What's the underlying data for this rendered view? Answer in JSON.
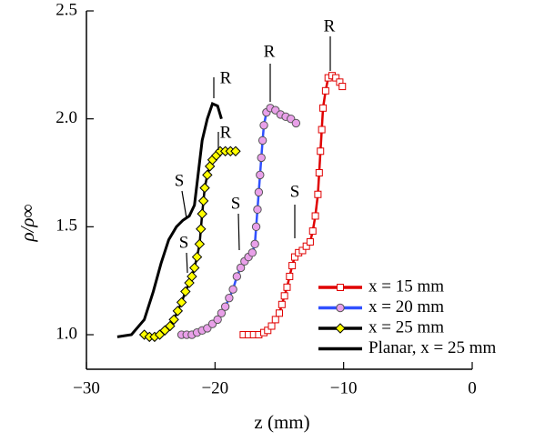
{
  "chart_data": {
    "type": "line",
    "xlabel": "z (mm)",
    "ylabel": "ρ/ρ∞",
    "xlim": [
      -30,
      0
    ],
    "ylim": [
      0.84,
      2.5
    ],
    "xticks": [
      {
        "value": -30,
        "label": "−30"
      },
      {
        "value": -20,
        "label": "−20"
      },
      {
        "value": -10,
        "label": "−10"
      },
      0
    ],
    "yticks": [
      {
        "value": 1,
        "label": "1.0"
      },
      1.5,
      {
        "value": 2,
        "label": "2.0"
      },
      2.5
    ],
    "legend": "lower right",
    "annotations": [
      "S",
      "S",
      "R",
      "R",
      "S",
      "R",
      "S",
      "R"
    ],
    "series": [
      {
        "name": "x = 15 mm",
        "color": "#e00000",
        "marker": "square",
        "marker_fill": "#ffffff",
        "marker_stroke": "#e00000",
        "x": [
          -17.8,
          -17.4,
          -17.0,
          -16.6,
          -16.2,
          -15.9,
          -15.6,
          -15.3,
          -15.0,
          -14.8,
          -14.6,
          -14.4,
          -14.2,
          -14.0,
          -13.8,
          -13.5,
          -13.2,
          -12.9,
          -12.6,
          -12.4,
          -12.2,
          -12.0,
          -11.9,
          -11.8,
          -11.7,
          -11.6,
          -11.4,
          -11.2,
          -10.9,
          -10.6,
          -10.3,
          -10.1
        ],
        "values": [
          1.0,
          1.0,
          1.0,
          1.0,
          1.01,
          1.02,
          1.04,
          1.07,
          1.1,
          1.14,
          1.18,
          1.22,
          1.27,
          1.32,
          1.36,
          1.38,
          1.39,
          1.41,
          1.43,
          1.48,
          1.55,
          1.65,
          1.75,
          1.85,
          1.95,
          2.05,
          2.13,
          2.19,
          2.2,
          2.19,
          2.17,
          2.15
        ]
      },
      {
        "name": "x = 20 mm",
        "color": "#3050ff",
        "marker": "circle",
        "marker_fill": "#e9a0e9",
        "marker_stroke": "#555555",
        "x": [
          -22.6,
          -22.2,
          -21.8,
          -21.4,
          -21.0,
          -20.6,
          -20.2,
          -19.8,
          -19.5,
          -19.2,
          -18.9,
          -18.6,
          -18.3,
          -18.0,
          -17.7,
          -17.4,
          -17.1,
          -16.9,
          -16.8,
          -16.7,
          -16.6,
          -16.5,
          -16.4,
          -16.3,
          -16.2,
          -16.0,
          -15.7,
          -15.3,
          -14.9,
          -14.5,
          -14.1,
          -13.7
        ],
        "values": [
          1.0,
          1.0,
          1.0,
          1.01,
          1.02,
          1.03,
          1.05,
          1.07,
          1.1,
          1.13,
          1.17,
          1.21,
          1.27,
          1.31,
          1.34,
          1.36,
          1.38,
          1.42,
          1.5,
          1.58,
          1.66,
          1.74,
          1.82,
          1.9,
          1.97,
          2.03,
          2.05,
          2.04,
          2.02,
          2.01,
          2.0,
          1.98
        ]
      },
      {
        "name": "x = 25 mm",
        "color": "#000000",
        "marker": "diamond",
        "marker_fill": "#ffff00",
        "marker_stroke": "#000000",
        "x": [
          -25.5,
          -25.1,
          -24.7,
          -24.3,
          -23.9,
          -23.5,
          -23.2,
          -22.9,
          -22.6,
          -22.3,
          -22.0,
          -21.8,
          -21.6,
          -21.4,
          -21.2,
          -21.1,
          -21.0,
          -20.9,
          -20.8,
          -20.6,
          -20.4,
          -20.2,
          -19.9,
          -19.6,
          -19.2,
          -18.8,
          -18.4
        ],
        "values": [
          1.0,
          0.99,
          0.99,
          1.0,
          1.02,
          1.04,
          1.07,
          1.11,
          1.15,
          1.2,
          1.24,
          1.27,
          1.31,
          1.36,
          1.42,
          1.49,
          1.56,
          1.62,
          1.68,
          1.74,
          1.78,
          1.81,
          1.83,
          1.85,
          1.85,
          1.85,
          1.85
        ]
      },
      {
        "name": "Planar, x = 25 mm",
        "color": "#000000",
        "marker": "none",
        "x": [
          -27.6,
          -26.5,
          -25.5,
          -24.8,
          -24.2,
          -23.6,
          -23.0,
          -22.5,
          -22.0,
          -21.6,
          -21.3,
          -21.0,
          -20.6,
          -20.2,
          -19.8,
          -19.5
        ],
        "values": [
          0.99,
          1.0,
          1.07,
          1.2,
          1.33,
          1.44,
          1.5,
          1.53,
          1.55,
          1.6,
          1.75,
          1.9,
          2.0,
          2.07,
          2.06,
          2.0
        ]
      }
    ]
  }
}
